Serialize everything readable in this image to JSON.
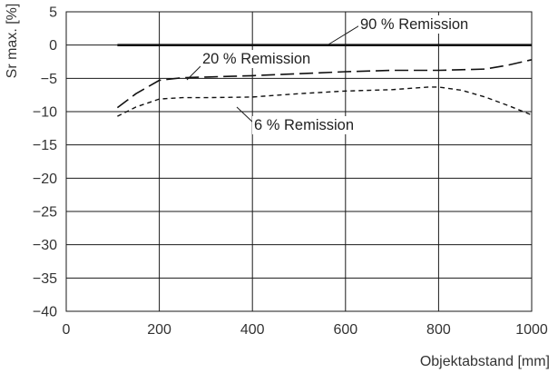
{
  "chart_data": {
    "type": "line",
    "xlabel": "Objektabstand [mm]",
    "ylabel": "Sr max. [%]",
    "xlim": [
      0,
      1000
    ],
    "ylim": [
      -40,
      5
    ],
    "xticks": [
      0,
      200,
      400,
      600,
      800,
      1000
    ],
    "yticks": [
      5,
      0,
      -5,
      -10,
      -15,
      -20,
      -25,
      -30,
      -35,
      -40
    ],
    "xtick_labels": [
      "0",
      "200",
      "400",
      "600",
      "800",
      "1000"
    ],
    "ytick_labels": [
      "5",
      "0",
      "−5",
      "−10",
      "−15",
      "−20",
      "−25",
      "−30",
      "−35",
      "−40"
    ],
    "grid": true,
    "series": [
      {
        "name": "90 % Remission",
        "style": "solid",
        "x": [
          110,
          200,
          300,
          400,
          500,
          600,
          700,
          800,
          900,
          1000
        ],
        "y": [
          0,
          0,
          0,
          0,
          0,
          0,
          0,
          0,
          0,
          0
        ]
      },
      {
        "name": "20 % Remission",
        "style": "long-dash",
        "x": [
          110,
          150,
          200,
          250,
          300,
          400,
          500,
          600,
          700,
          800,
          900,
          950,
          1000
        ],
        "y": [
          -9.4,
          -7.3,
          -5.3,
          -4.9,
          -4.8,
          -4.6,
          -4.3,
          -4.0,
          -3.8,
          -3.8,
          -3.6,
          -3.0,
          -2.2
        ]
      },
      {
        "name": "6 % Remission",
        "style": "short-dash",
        "x": [
          110,
          150,
          200,
          250,
          300,
          400,
          500,
          600,
          700,
          780,
          800,
          850,
          900,
          950,
          1000
        ],
        "y": [
          -10.7,
          -9.3,
          -8.1,
          -7.9,
          -7.9,
          -7.8,
          -7.3,
          -6.9,
          -6.7,
          -6.3,
          -6.3,
          -6.8,
          -7.8,
          -9.1,
          -10.5
        ]
      }
    ]
  }
}
